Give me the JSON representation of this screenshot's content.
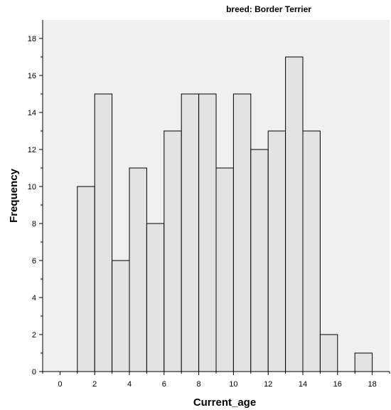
{
  "chart_data": {
    "type": "bar",
    "title": "breed: Border Terrier",
    "xlabel": "Current_age",
    "ylabel": "Frequency",
    "xlim": [
      -1,
      19
    ],
    "ylim": [
      0,
      19
    ],
    "x_ticks": [
      0,
      2,
      4,
      6,
      8,
      10,
      12,
      14,
      16,
      18
    ],
    "y_ticks": [
      0,
      2,
      4,
      6,
      8,
      10,
      12,
      14,
      16,
      18
    ],
    "bin_width": 1,
    "bins": [
      {
        "x0": 1,
        "x1": 2,
        "value": 10
      },
      {
        "x0": 2,
        "x1": 3,
        "value": 15
      },
      {
        "x0": 3,
        "x1": 4,
        "value": 6
      },
      {
        "x0": 4,
        "x1": 5,
        "value": 11
      },
      {
        "x0": 5,
        "x1": 6,
        "value": 8
      },
      {
        "x0": 6,
        "x1": 7,
        "value": 13
      },
      {
        "x0": 7,
        "x1": 8,
        "value": 15
      },
      {
        "x0": 8,
        "x1": 9,
        "value": 15
      },
      {
        "x0": 9,
        "x1": 10,
        "value": 11
      },
      {
        "x0": 10,
        "x1": 11,
        "value": 15
      },
      {
        "x0": 11,
        "x1": 12,
        "value": 12
      },
      {
        "x0": 12,
        "x1": 13,
        "value": 13
      },
      {
        "x0": 13,
        "x1": 14,
        "value": 17
      },
      {
        "x0": 14,
        "x1": 15,
        "value": 13
      },
      {
        "x0": 15,
        "x1": 16,
        "value": 2
      },
      {
        "x0": 17,
        "x1": 18,
        "value": 1
      }
    ],
    "grid": false,
    "colors": {
      "plot_background": "#f0f0f0",
      "bar_fill": "#e3e3e3",
      "bar_stroke": "#000000",
      "axis": "#000000"
    }
  }
}
